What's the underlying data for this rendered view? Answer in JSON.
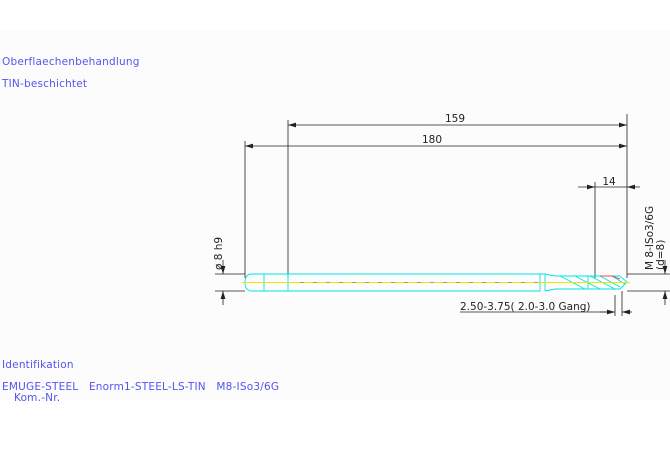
{
  "surface": {
    "heading": "Oberflaechenbehandlung",
    "value": "TIN-beschichtet"
  },
  "identification": {
    "heading": "Identifikation",
    "line1": "EMUGE-STEEL   Enorm1-STEEL-LS-TIN   M8-ISo3/6G",
    "line2": "Kom.-Nr."
  },
  "dimensions": {
    "overall_length": "180",
    "shank_to_tip": "159",
    "thread_length": "14",
    "shank_diameter": "ø 8 h9",
    "thread_spec": "M 8-ISo3/6G",
    "thread_diameter": "(d=8)",
    "chamfer": "2.50-3.75( 2.0-3.0  Gang)"
  },
  "colors": {
    "text": "#5555ee",
    "tool_outline": "#00e5e5",
    "axis": "#e8e800",
    "dim_lines": "#222222",
    "tip_accent": "#ff4444"
  }
}
